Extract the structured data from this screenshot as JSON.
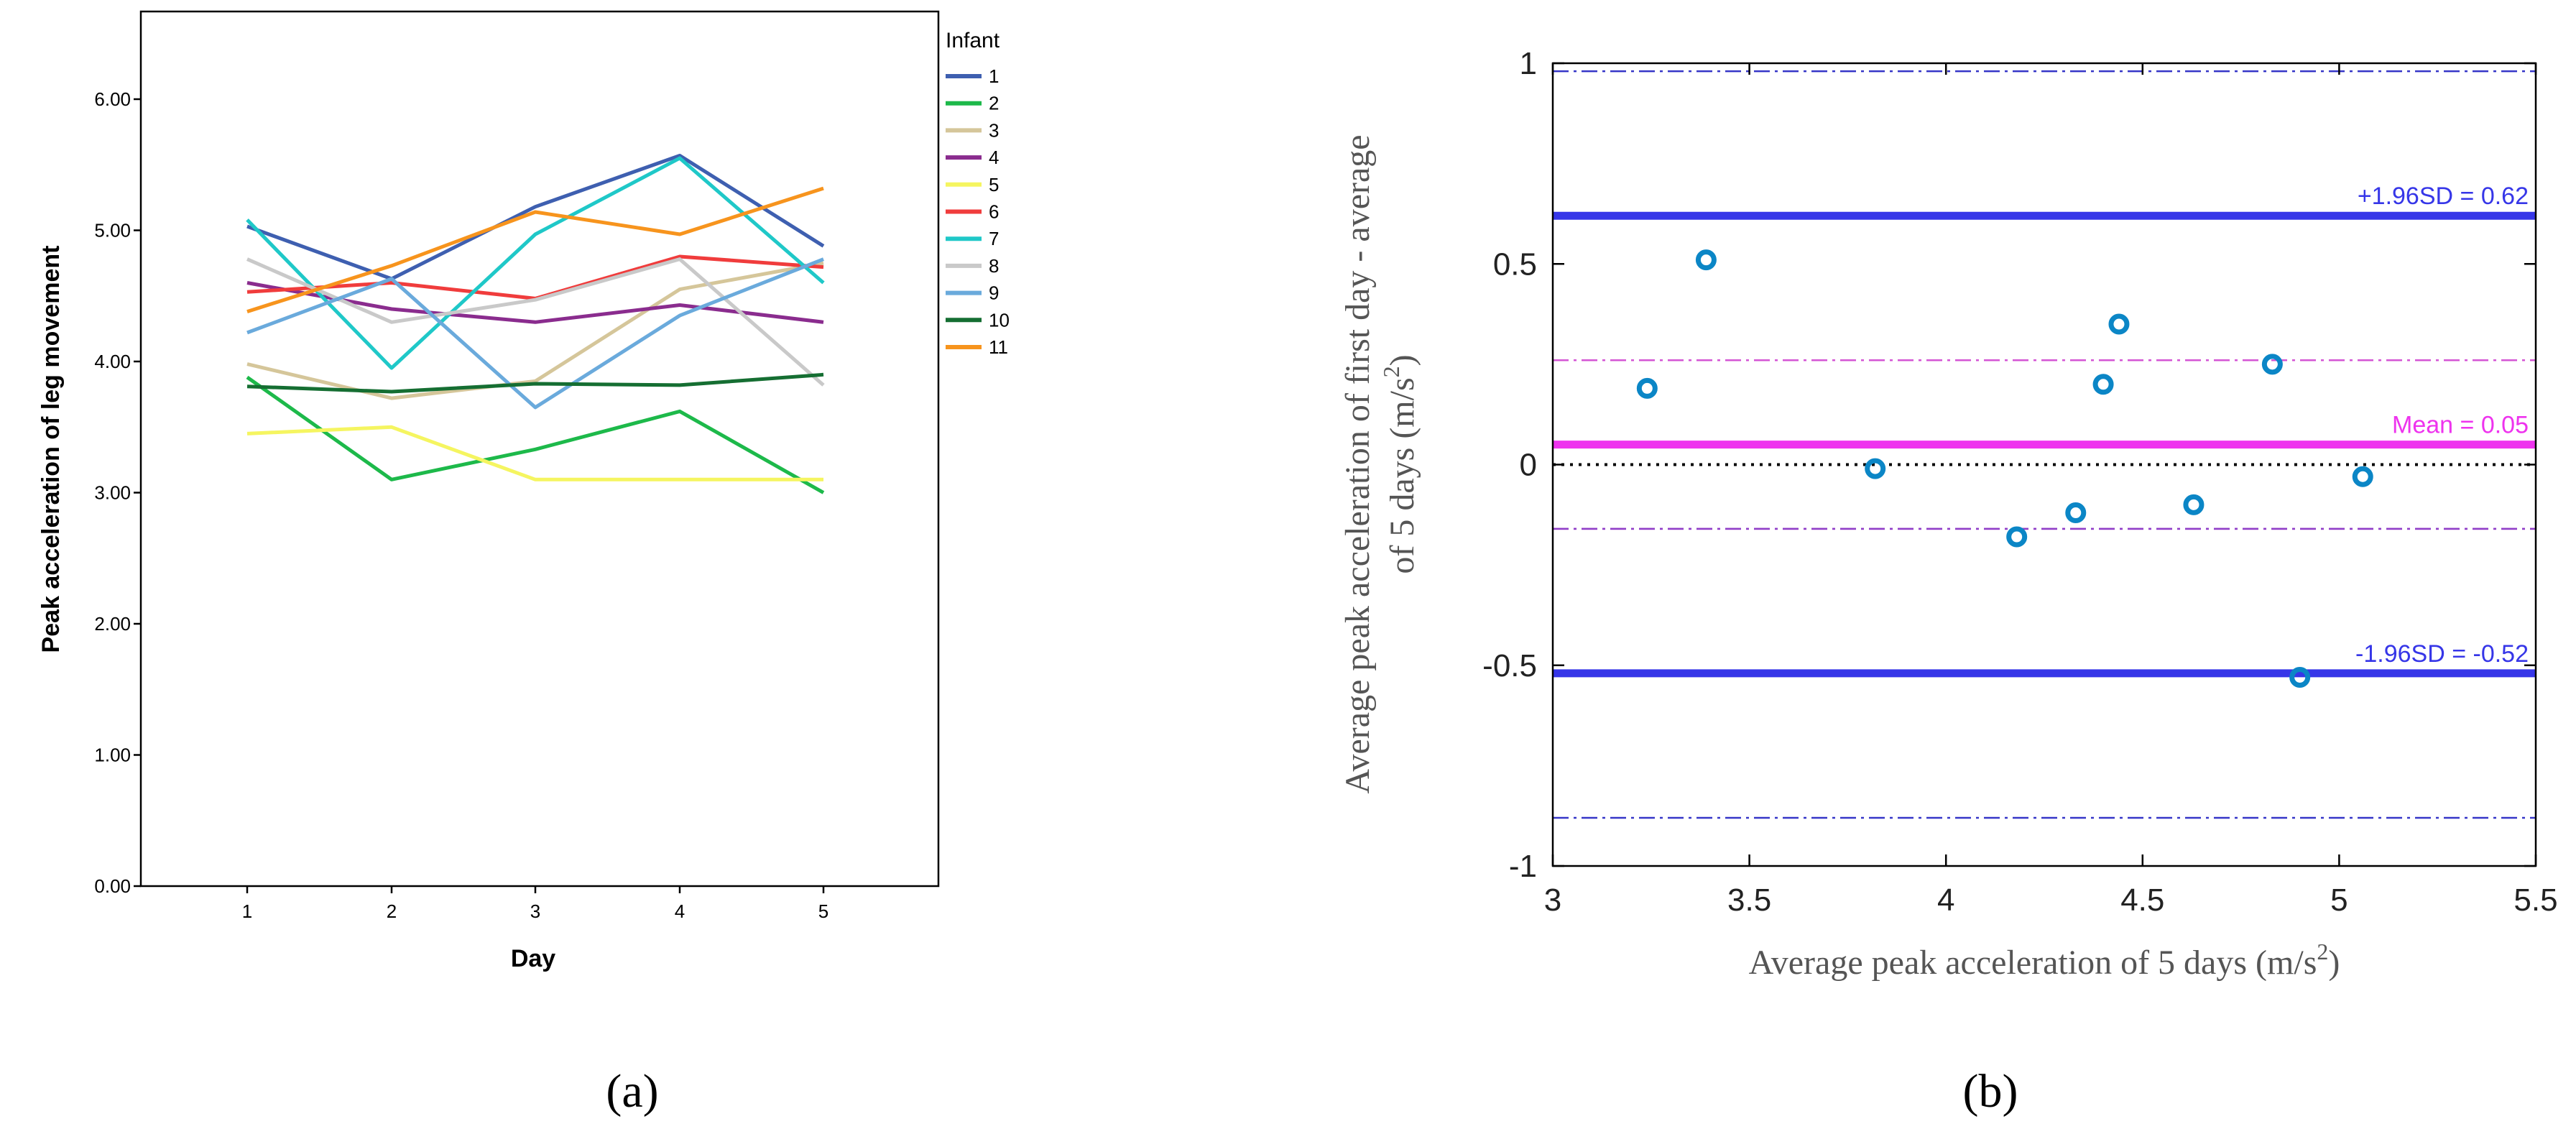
{
  "chart_data": [
    {
      "id": "a",
      "type": "line",
      "panel_label": "(a)",
      "title": "",
      "xlabel": "Day",
      "ylabel": "Peak acceleration of leg movement",
      "categories": [
        "1",
        "2",
        "3",
        "4",
        "5"
      ],
      "ylim": [
        0,
        6.8
      ],
      "yticks": [
        0,
        1,
        2,
        3,
        4,
        5,
        6
      ],
      "ytick_labels": [
        "0.00",
        "1.00",
        "2.00",
        "3.00",
        "4.00",
        "5.00",
        "6.00"
      ],
      "grid": false,
      "legend_title": "Infant",
      "legend_position": "right",
      "series": [
        {
          "name": "1",
          "color": "#3E5FB0",
          "values": [
            5.03,
            4.63,
            5.18,
            5.57,
            4.88
          ]
        },
        {
          "name": "2",
          "color": "#1DB94A",
          "values": [
            3.88,
            3.1,
            3.33,
            3.62,
            3.0
          ]
        },
        {
          "name": "3",
          "color": "#D5C69A",
          "values": [
            3.98,
            3.72,
            3.85,
            4.55,
            4.75
          ]
        },
        {
          "name": "4",
          "color": "#8A2C8E",
          "values": [
            4.6,
            4.4,
            4.3,
            4.43,
            4.3
          ]
        },
        {
          "name": "5",
          "color": "#F5F560",
          "values": [
            3.45,
            3.5,
            3.1,
            3.1,
            3.1
          ]
        },
        {
          "name": "6",
          "color": "#F03C3C",
          "values": [
            4.53,
            4.6,
            4.48,
            4.8,
            4.72
          ]
        },
        {
          "name": "7",
          "color": "#1FC8C8",
          "values": [
            5.08,
            3.95,
            4.97,
            5.55,
            4.6
          ]
        },
        {
          "name": "8",
          "color": "#C9C9C9",
          "values": [
            4.78,
            4.3,
            4.47,
            4.78,
            3.82
          ]
        },
        {
          "name": "9",
          "color": "#6AAADC",
          "values": [
            4.22,
            4.63,
            3.65,
            4.35,
            4.78
          ]
        },
        {
          "name": "10",
          "color": "#156E32",
          "values": [
            3.81,
            3.77,
            3.83,
            3.82,
            3.9
          ]
        },
        {
          "name": "11",
          "color": "#F7941D",
          "values": [
            4.38,
            4.73,
            5.14,
            4.97,
            5.32
          ]
        }
      ]
    },
    {
      "id": "b",
      "type": "scatter",
      "panel_label": "(b)",
      "title": "",
      "xlabel": "Average peak acceleration of 5 days (m/s",
      "xlabel_sup": "2",
      "xlabel_end": ")",
      "ylabel_line1": "Average peak acceleration of first day - average",
      "ylabel_line2": "of 5 days (m/s",
      "ylabel_sup": "2",
      "ylabel_end": ")",
      "xlim": [
        3,
        5.5
      ],
      "ylim": [
        -1,
        1
      ],
      "xticks": [
        3,
        3.5,
        4,
        4.5,
        5,
        5.5
      ],
      "xtick_labels": [
        "3",
        "3.5",
        "4",
        "4.5",
        "5",
        "5.5"
      ],
      "yticks": [
        -1,
        -0.5,
        0,
        0.5,
        1
      ],
      "ytick_labels": [
        "-1",
        "-0.5",
        "0",
        "0.5",
        "1"
      ],
      "grid": false,
      "marker_color": "#0B86C6",
      "points": [
        {
          "x": 3.24,
          "y": 0.19
        },
        {
          "x": 3.39,
          "y": 0.51
        },
        {
          "x": 3.82,
          "y": -0.01
        },
        {
          "x": 4.18,
          "y": -0.18
        },
        {
          "x": 4.33,
          "y": -0.12
        },
        {
          "x": 4.4,
          "y": 0.2
        },
        {
          "x": 4.44,
          "y": 0.35
        },
        {
          "x": 4.63,
          "y": -0.1
        },
        {
          "x": 4.83,
          "y": 0.25
        },
        {
          "x": 4.9,
          "y": -0.53
        },
        {
          "x": 5.06,
          "y": -0.03
        }
      ],
      "reference_lines": [
        {
          "name": "upper-loa",
          "y": 0.62,
          "label": "+1.96SD = 0.62",
          "color": "#3636E8",
          "style": "solid-thick"
        },
        {
          "name": "mean",
          "y": 0.05,
          "label": "Mean = 0.05",
          "color": "#EE33EE",
          "style": "solid-thick"
        },
        {
          "name": "lower-loa",
          "y": -0.52,
          "label": "-1.96SD = -0.52",
          "color": "#3636E8",
          "style": "solid-thick"
        },
        {
          "name": "zero",
          "y": 0,
          "label": "",
          "color": "#000000",
          "style": "dotted"
        },
        {
          "name": "upper-loa-ci-high",
          "y": 0.98,
          "label": "",
          "color": "#3636C8",
          "style": "dashdot"
        },
        {
          "name": "upper-loa-ci-low",
          "y": 0.26,
          "label": "",
          "color": "#8E3FC8",
          "style": "dashdot"
        },
        {
          "name": "mean-ci-high",
          "y": 0.26,
          "label": "",
          "color": "#D455D4",
          "style": "dashdot"
        },
        {
          "name": "mean-ci-low",
          "y": -0.16,
          "label": "",
          "color": "#D455D4",
          "style": "dashdot"
        },
        {
          "name": "lower-loa-ci-high",
          "y": -0.16,
          "label": "",
          "color": "#8E3FC8",
          "style": "dashdot"
        },
        {
          "name": "lower-loa-ci-low",
          "y": -0.88,
          "label": "",
          "color": "#3636C8",
          "style": "dashdot"
        }
      ]
    }
  ]
}
